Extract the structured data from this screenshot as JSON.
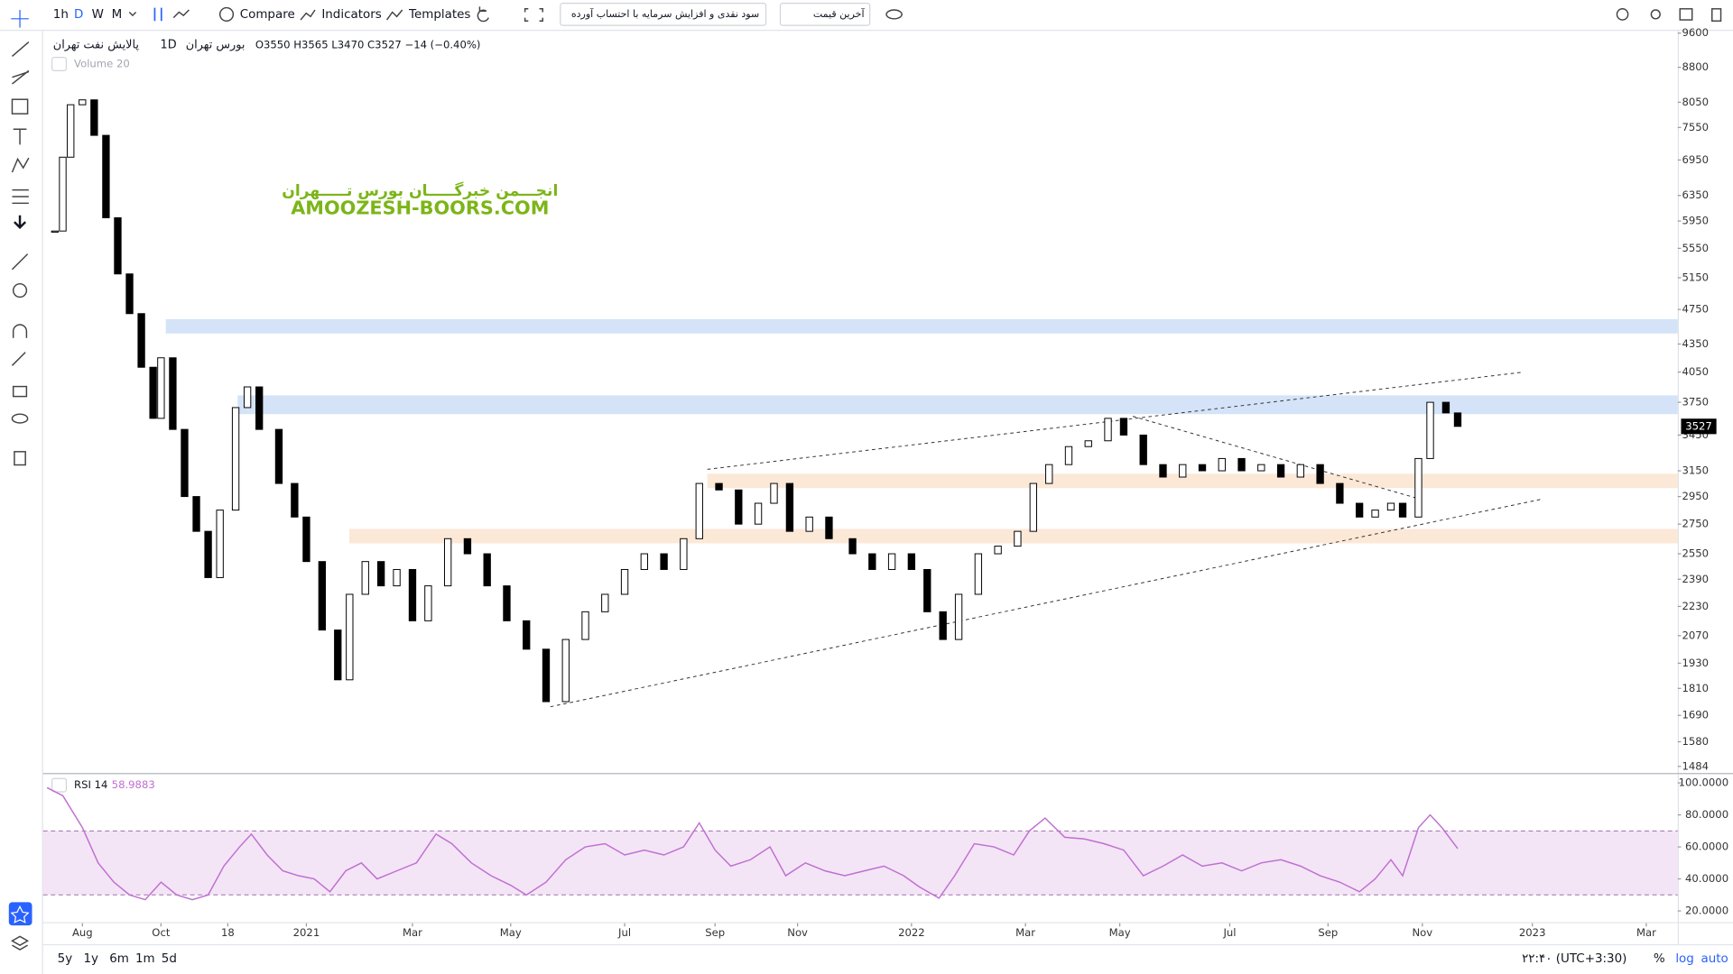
{
  "toolbar": {
    "intervals": [
      "1h",
      "D",
      "W",
      "M"
    ],
    "compare": "Compare",
    "indicators": "Indicators",
    "templates": "Templates",
    "adjustment": "سود نقدی و افزایش سرمایه با احتساب آورده",
    "price_type": "آخرین قیمت"
  },
  "legend": {
    "symbol": "پالایش نفت تهران",
    "interval": "1D",
    "exchange": "بورس تهران",
    "ohlc": "O3550 H3565 L3470 C3527 −14 (−0.40%)",
    "volume": "Volume 20"
  },
  "watermark": {
    "fa": "انجـــمن خبرگـــــان بورس تـــــهران",
    "en": "AMOOZESH-BOORS.COM"
  },
  "chart_data": [
    {
      "type": "candlestick",
      "color": "#000000",
      "log_scale": true,
      "x": [
        -0.7,
        -0.5,
        -0.3,
        0,
        0.3,
        0.6,
        0.9,
        1.2,
        1.5,
        1.8,
        2.0,
        2.3,
        2.6,
        2.9,
        3.2,
        3.5,
        3.9,
        4.2,
        4.5,
        5.0,
        5.4,
        5.7,
        6.1,
        6.5,
        6.8,
        7.2,
        7.6,
        8.0,
        8.4,
        8.8,
        9.3,
        9.8,
        10.3,
        10.8,
        11.3,
        11.8,
        12.3,
        12.8,
        13.3,
        13.8,
        14.3,
        14.8,
        15.3,
        15.7,
        16.2,
        16.7,
        17.2,
        17.6,
        18.0,
        18.5,
        19.0,
        19.6,
        20.1,
        20.6,
        21.1,
        21.5,
        21.9,
        22.3,
        22.8,
        23.3,
        23.8,
        24.2,
        24.6,
        25.1,
        25.6,
        26.1,
        26.5,
        27.0,
        27.5,
        28.0,
        28.5,
        29.0,
        29.5,
        30.0,
        30.5,
        31.0,
        31.5,
        32.0,
        32.5,
        32.9,
        33.3,
        33.6,
        34.0,
        34.3,
        34.7,
        35.0
      ],
      "values": [
        5800,
        7000,
        8000,
        8100,
        7400,
        6000,
        5200,
        4700,
        4100,
        3600,
        4200,
        3500,
        2950,
        2700,
        2400,
        2850,
        3700,
        3900,
        3500,
        3050,
        2800,
        2500,
        2100,
        1850,
        2300,
        2500,
        2350,
        2450,
        2150,
        2350,
        2650,
        2550,
        2350,
        2150,
        2000,
        1750,
        2050,
        2200,
        2300,
        2450,
        2550,
        2450,
        2650,
        3050,
        3000,
        2750,
        2900,
        3050,
        2700,
        2800,
        2650,
        2550,
        2450,
        2550,
        2450,
        2200,
        2050,
        2300,
        2550,
        2600,
        2700,
        3050,
        3200,
        3350,
        3400,
        3600,
        3450,
        3200,
        3100,
        3200,
        3150,
        3250,
        3150,
        3200,
        3100,
        3200,
        3050,
        2900,
        2800,
        2850,
        2900,
        2800,
        3250,
        3750,
        3650,
        3527
      ],
      "xlim": [
        -1,
        40.6
      ],
      "ylim": [
        1484,
        9600
      ],
      "yticks": [
        9600,
        8800,
        8050,
        7550,
        6950,
        6350,
        5950,
        5550,
        5150,
        4750,
        4350,
        4050,
        3750,
        3450,
        3150,
        2950,
        2750,
        2550,
        2390,
        2230,
        2070,
        1930,
        1810,
        1690,
        1580,
        1484
      ]
    },
    {
      "type": "line",
      "title": "RSI 14",
      "color": "#c06fd2",
      "band": [
        30,
        70
      ],
      "x": [
        -0.9,
        -0.5,
        0,
        0.4,
        0.8,
        1.2,
        1.6,
        2.0,
        2.4,
        2.8,
        3.2,
        3.6,
        4.0,
        4.3,
        4.7,
        5.1,
        5.5,
        5.9,
        6.3,
        6.7,
        7.1,
        7.5,
        8.0,
        8.5,
        9.0,
        9.4,
        9.9,
        10.4,
        10.9,
        11.3,
        11.8,
        12.3,
        12.8,
        13.3,
        13.8,
        14.3,
        14.8,
        15.3,
        15.7,
        16.1,
        16.5,
        17.0,
        17.5,
        17.9,
        18.4,
        18.9,
        19.4,
        19.9,
        20.4,
        20.9,
        21.3,
        21.8,
        22.2,
        22.7,
        23.2,
        23.7,
        24.1,
        24.5,
        25.0,
        25.5,
        26.0,
        26.5,
        27.0,
        27.5,
        28.0,
        28.5,
        29.0,
        29.5,
        30.0,
        30.5,
        31.0,
        31.5,
        32.0,
        32.5,
        32.9,
        33.3,
        33.6,
        34.0,
        34.3,
        34.6,
        35.0
      ],
      "values": [
        97,
        92,
        72,
        50,
        38,
        30,
        27,
        38,
        30,
        27,
        30,
        48,
        60,
        68,
        55,
        45,
        42,
        40,
        32,
        45,
        50,
        40,
        45,
        50,
        68,
        62,
        50,
        42,
        36,
        30,
        38,
        52,
        60,
        62,
        55,
        58,
        55,
        60,
        75,
        58,
        48,
        52,
        60,
        42,
        50,
        45,
        42,
        45,
        48,
        42,
        35,
        28,
        42,
        62,
        60,
        55,
        70,
        78,
        66,
        65,
        62,
        58,
        42,
        48,
        55,
        48,
        50,
        45,
        50,
        52,
        48,
        42,
        38,
        32,
        40,
        52,
        42,
        72,
        80,
        72,
        58.9883
      ],
      "xlim": [
        -1,
        40.6
      ],
      "ylim": [
        13,
        104.8
      ],
      "yticks": [
        {
          "value": 100,
          "label": "100.0000"
        },
        {
          "value": 80,
          "label": "80.0000"
        },
        {
          "value": 60,
          "label": "60.0000"
        },
        {
          "value": 40,
          "label": "40.0000"
        },
        {
          "value": 20,
          "label": "20.0000"
        }
      ],
      "xticks": [
        {
          "value": 0,
          "label": "Aug"
        },
        {
          "value": 2,
          "label": "Oct"
        },
        {
          "value": 3.7,
          "label": "18"
        },
        {
          "value": 5.7,
          "label": "2021"
        },
        {
          "value": 8.4,
          "label": "Mar"
        },
        {
          "value": 10.9,
          "label": "May"
        },
        {
          "value": 13.8,
          "label": "Jul"
        },
        {
          "value": 16.1,
          "label": "Sep"
        },
        {
          "value": 18.2,
          "label": "Nov"
        },
        {
          "value": 21.1,
          "label": "2022"
        },
        {
          "value": 24,
          "label": "Mar"
        },
        {
          "value": 26.4,
          "label": "May"
        },
        {
          "value": 29.2,
          "label": "Jul"
        },
        {
          "value": 31.7,
          "label": "Sep"
        },
        {
          "value": 34.1,
          "label": "Nov"
        },
        {
          "value": 36.9,
          "label": "2023"
        },
        {
          "value": 39.8,
          "label": "Mar"
        }
      ]
    }
  ],
  "bottom_bar": {
    "ranges": [
      "5y",
      "1y",
      "6m",
      "1m",
      "5d"
    ],
    "time": "۲۲:۴۰ (UTC+3:30)",
    "percent": "%",
    "log": "log",
    "auto": "auto"
  }
}
